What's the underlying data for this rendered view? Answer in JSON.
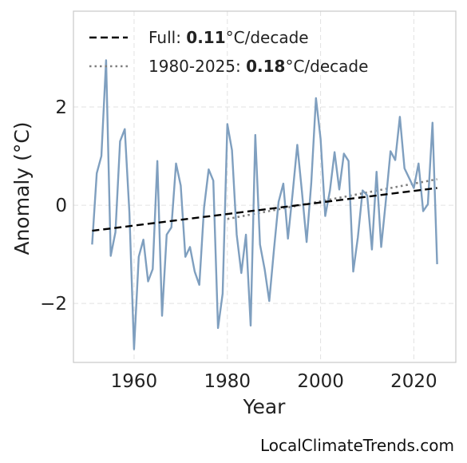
{
  "chart_data": {
    "type": "line",
    "title": "",
    "xlabel": "Year",
    "ylabel": "Anomaly (°C)",
    "xlim": [
      1947,
      2029
    ],
    "ylim": [
      -3.2,
      3.95
    ],
    "xticks": [
      1960,
      1980,
      2000,
      2020
    ],
    "yticks": [
      -2,
      0,
      2
    ],
    "ytick_labels": [
      "−2",
      "0",
      "2"
    ],
    "grid": true,
    "legend_placement": "top-left",
    "series": [
      {
        "role": "data",
        "color": "#7f9fbf",
        "x": [
          1951,
          1952,
          1953,
          1954,
          1955,
          1956,
          1957,
          1958,
          1959,
          1960,
          1961,
          1962,
          1963,
          1964,
          1965,
          1966,
          1967,
          1968,
          1969,
          1970,
          1971,
          1972,
          1973,
          1974,
          1975,
          1976,
          1977,
          1978,
          1979,
          1980,
          1981,
          1982,
          1983,
          1984,
          1985,
          1986,
          1987,
          1988,
          1989,
          1990,
          1991,
          1992,
          1993,
          1994,
          1995,
          1996,
          1997,
          1998,
          1999,
          2000,
          2001,
          2002,
          2003,
          2004,
          2005,
          2006,
          2007,
          2008,
          2009,
          2010,
          2011,
          2012,
          2013,
          2014,
          2015,
          2016,
          2017,
          2018,
          2019,
          2020,
          2021,
          2022,
          2023,
          2024,
          2025
        ],
        "values": [
          -0.8,
          0.65,
          1.0,
          2.95,
          -1.03,
          -0.55,
          1.3,
          1.55,
          -0.15,
          -2.93,
          -1.05,
          -0.7,
          -1.55,
          -1.3,
          0.9,
          -2.25,
          -0.6,
          -0.45,
          0.85,
          0.4,
          -1.05,
          -0.85,
          -1.35,
          -1.62,
          -0.05,
          0.73,
          0.5,
          -2.5,
          -1.8,
          1.65,
          1.12,
          -0.6,
          -1.38,
          -0.6,
          -2.45,
          1.43,
          -0.8,
          -1.3,
          -1.95,
          -0.9,
          0.07,
          0.44,
          -0.68,
          0.23,
          1.23,
          0.28,
          -0.75,
          0.45,
          2.18,
          1.35,
          -0.22,
          0.3,
          1.08,
          0.32,
          1.05,
          0.9,
          -1.35,
          -0.65,
          0.3,
          0.2,
          -0.9,
          0.68,
          -0.85,
          0.1,
          1.1,
          0.92,
          1.8,
          0.75,
          0.55,
          0.35,
          0.85,
          -0.12,
          0.02,
          1.68,
          -1.2
        ]
      },
      {
        "role": "trend-full",
        "name": "Full",
        "rate": "0.11",
        "unit": "°C/decade",
        "color": "#000000",
        "x": [
          1951,
          2025
        ],
        "values": [
          -0.52,
          0.35
        ]
      },
      {
        "role": "trend-recent",
        "name": "1980-2025",
        "rate": "0.18",
        "unit": "°C/decade",
        "color": "#808080",
        "x": [
          1980,
          2025
        ],
        "values": [
          -0.28,
          0.53
        ]
      }
    ]
  },
  "legend": {
    "full_prefix": "Full: ",
    "full_rate": "0.11",
    "full_unit": "°C/decade",
    "recent_prefix": "1980-2025: ",
    "recent_rate": "0.18",
    "recent_unit": "°C/decade"
  },
  "source_text": "LocalClimateTrends.com"
}
